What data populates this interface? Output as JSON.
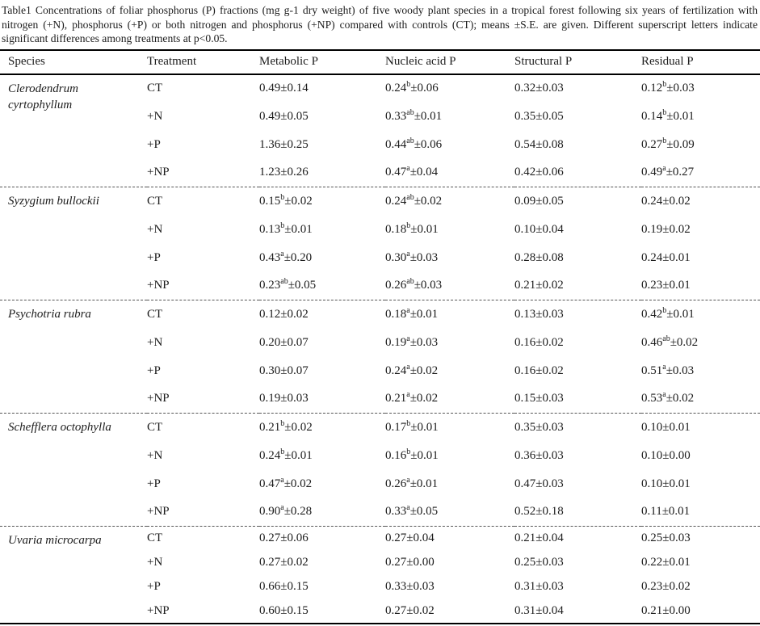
{
  "caption": "Table1 Concentrations of foliar phosphorus (P) fractions (mg g-1 dry weight) of five woody plant species in a tropical forest following six years of fertilization with nitrogen (+N), phosphorus (+P) or both nitrogen and phosphorus (+NP) compared with controls (CT); means ±S.E. are given. Different superscript letters indicate significant differences among treatments at p<0.05.",
  "plus_minus": "±",
  "table": {
    "columns": [
      "Species",
      "Treatment",
      "Metabolic P",
      "Nucleic acid P",
      "Structural P",
      "Residual P"
    ],
    "species": [
      {
        "name": "Clerodendrum cyrtophyllum",
        "rows": [
          {
            "treatment": "CT",
            "cells": [
              {
                "v": "0.49",
                "s": "",
                "e": "0.14"
              },
              {
                "v": "0.24",
                "s": "b",
                "e": "0.06"
              },
              {
                "v": "0.32",
                "s": "",
                "e": "0.03"
              },
              {
                "v": "0.12",
                "s": "b",
                "e": "0.03"
              }
            ]
          },
          {
            "treatment": "+N",
            "cells": [
              {
                "v": "0.49",
                "s": "",
                "e": "0.05"
              },
              {
                "v": "0.33",
                "s": "ab",
                "e": "0.01"
              },
              {
                "v": "0.35",
                "s": "",
                "e": "0.05"
              },
              {
                "v": "0.14",
                "s": "b",
                "e": "0.01"
              }
            ]
          },
          {
            "treatment": "+P",
            "cells": [
              {
                "v": "1.36",
                "s": "",
                "e": "0.25"
              },
              {
                "v": "0.44",
                "s": "ab",
                "e": "0.06"
              },
              {
                "v": "0.54",
                "s": "",
                "e": "0.08"
              },
              {
                "v": "0.27",
                "s": "b",
                "e": "0.09"
              }
            ]
          },
          {
            "treatment": "+NP",
            "cells": [
              {
                "v": "1.23",
                "s": "",
                "e": "0.26"
              },
              {
                "v": "0.47",
                "s": "a",
                "e": "0.04"
              },
              {
                "v": "0.42",
                "s": "",
                "e": "0.06"
              },
              {
                "v": "0.49",
                "s": "a",
                "e": "0.27"
              }
            ]
          }
        ]
      },
      {
        "name": "Syzygium bullockii",
        "rows": [
          {
            "treatment": "CT",
            "cells": [
              {
                "v": "0.15",
                "s": "b",
                "e": "0.02"
              },
              {
                "v": "0.24",
                "s": "ab",
                "e": "0.02"
              },
              {
                "v": "0.09",
                "s": "",
                "e": "0.05"
              },
              {
                "v": "0.24",
                "s": "",
                "e": "0.02"
              }
            ]
          },
          {
            "treatment": "+N",
            "cells": [
              {
                "v": "0.13",
                "s": "b",
                "e": "0.01"
              },
              {
                "v": "0.18",
                "s": "b",
                "e": "0.01"
              },
              {
                "v": "0.10",
                "s": "",
                "e": "0.04"
              },
              {
                "v": "0.19",
                "s": "",
                "e": "0.02"
              }
            ]
          },
          {
            "treatment": "+P",
            "cells": [
              {
                "v": "0.43",
                "s": "a",
                "e": "0.20"
              },
              {
                "v": "0.30",
                "s": "a",
                "e": "0.03"
              },
              {
                "v": "0.28",
                "s": "",
                "e": "0.08"
              },
              {
                "v": "0.24",
                "s": "",
                "e": "0.01"
              }
            ]
          },
          {
            "treatment": "+NP",
            "cells": [
              {
                "v": "0.23",
                "s": "ab",
                "e": "0.05"
              },
              {
                "v": "0.26",
                "s": "ab",
                "e": "0.03"
              },
              {
                "v": "0.21",
                "s": "",
                "e": "0.02"
              },
              {
                "v": "0.23",
                "s": "",
                "e": "0.01"
              }
            ]
          }
        ]
      },
      {
        "name": "Psychotria rubra",
        "rows": [
          {
            "treatment": "CT",
            "cells": [
              {
                "v": "0.12",
                "s": "",
                "e": "0.02"
              },
              {
                "v": "0.18",
                "s": "a",
                "e": "0.01"
              },
              {
                "v": "0.13",
                "s": "",
                "e": "0.03"
              },
              {
                "v": "0.42",
                "s": "b",
                "e": "0.01"
              }
            ]
          },
          {
            "treatment": "+N",
            "cells": [
              {
                "v": "0.20",
                "s": "",
                "e": "0.07"
              },
              {
                "v": "0.19",
                "s": "a",
                "e": "0.03"
              },
              {
                "v": "0.16",
                "s": "",
                "e": "0.02"
              },
              {
                "v": "0.46",
                "s": "ab",
                "e": "0.02"
              }
            ]
          },
          {
            "treatment": "+P",
            "cells": [
              {
                "v": "0.30",
                "s": "",
                "e": "0.07"
              },
              {
                "v": "0.24",
                "s": "a",
                "e": "0.02"
              },
              {
                "v": "0.16",
                "s": "",
                "e": "0.02"
              },
              {
                "v": "0.51",
                "s": "a",
                "e": "0.03"
              }
            ]
          },
          {
            "treatment": "+NP",
            "cells": [
              {
                "v": "0.19",
                "s": "",
                "e": "0.03"
              },
              {
                "v": "0.21",
                "s": "a",
                "e": "0.02"
              },
              {
                "v": "0.15",
                "s": "",
                "e": "0.03"
              },
              {
                "v": "0.53",
                "s": "a",
                "e": "0.02"
              }
            ]
          }
        ]
      },
      {
        "name": "Schefflera octophylla",
        "rows": [
          {
            "treatment": "CT",
            "cells": [
              {
                "v": "0.21",
                "s": "b",
                "e": "0.02"
              },
              {
                "v": "0.17",
                "s": "b",
                "e": "0.01"
              },
              {
                "v": "0.35",
                "s": "",
                "e": "0.03"
              },
              {
                "v": "0.10",
                "s": "",
                "e": "0.01"
              }
            ]
          },
          {
            "treatment": "+N",
            "cells": [
              {
                "v": "0.24",
                "s": "b",
                "e": "0.01"
              },
              {
                "v": "0.16",
                "s": "b",
                "e": "0.01"
              },
              {
                "v": "0.36",
                "s": "",
                "e": "0.03"
              },
              {
                "v": "0.10",
                "s": "",
                "e": "0.00"
              }
            ]
          },
          {
            "treatment": "+P",
            "cells": [
              {
                "v": "0.47",
                "s": "a",
                "e": "0.02"
              },
              {
                "v": "0.26",
                "s": "a",
                "e": "0.01"
              },
              {
                "v": "0.47",
                "s": "",
                "e": "0.03"
              },
              {
                "v": "0.10",
                "s": "",
                "e": "0.01"
              }
            ]
          },
          {
            "treatment": "+NP",
            "cells": [
              {
                "v": "0.90",
                "s": "a",
                "e": "0.28"
              },
              {
                "v": "0.33",
                "s": "a",
                "e": "0.05"
              },
              {
                "v": "0.52",
                "s": "",
                "e": "0.18"
              },
              {
                "v": "0.11",
                "s": "",
                "e": "0.01"
              }
            ]
          }
        ]
      },
      {
        "name": "Uvaria microcarpa",
        "rows": [
          {
            "treatment": "CT",
            "cells": [
              {
                "v": "0.27",
                "s": "",
                "e": "0.06"
              },
              {
                "v": "0.27",
                "s": "",
                "e": "0.04"
              },
              {
                "v": "0.21",
                "s": "",
                "e": "0.04"
              },
              {
                "v": "0.25",
                "s": "",
                "e": "0.03"
              }
            ]
          },
          {
            "treatment": "+N",
            "cells": [
              {
                "v": "0.27",
                "s": "",
                "e": "0.02"
              },
              {
                "v": "0.27",
                "s": "",
                "e": "0.00"
              },
              {
                "v": "0.25",
                "s": "",
                "e": "0.03"
              },
              {
                "v": "0.22",
                "s": "",
                "e": "0.01"
              }
            ]
          },
          {
            "treatment": "+P",
            "cells": [
              {
                "v": "0.66",
                "s": "",
                "e": "0.15"
              },
              {
                "v": "0.33",
                "s": "",
                "e": "0.03"
              },
              {
                "v": "0.31",
                "s": "",
                "e": "0.03"
              },
              {
                "v": "0.23",
                "s": "",
                "e": "0.02"
              }
            ]
          },
          {
            "treatment": "+NP",
            "cells": [
              {
                "v": "0.60",
                "s": "",
                "e": "0.15"
              },
              {
                "v": "0.27",
                "s": "",
                "e": "0.02"
              },
              {
                "v": "0.31",
                "s": "",
                "e": "0.04"
              },
              {
                "v": "0.21",
                "s": "",
                "e": "0.00"
              }
            ]
          }
        ]
      }
    ]
  }
}
